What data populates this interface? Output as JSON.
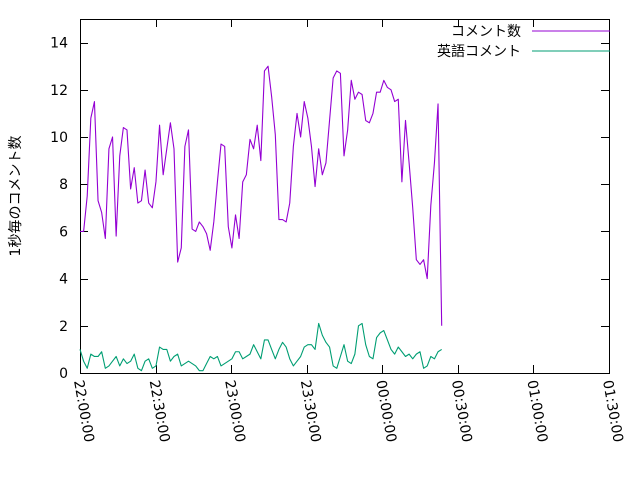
{
  "chart_data": {
    "type": "line",
    "title": "",
    "xlabel": "",
    "ylabel": "1秒毎のコメント数",
    "xlim": [
      "22:00:00",
      "01:30:00"
    ],
    "ylim": [
      0,
      15
    ],
    "x_ticks": [
      "22:00:00",
      "22:30:00",
      "23:00:00",
      "23:30:00",
      "00:00:00",
      "00:30:00",
      "01:00:00",
      "01:30:00"
    ],
    "y_ticks": [
      0,
      2,
      4,
      6,
      8,
      10,
      12,
      14
    ],
    "grid": false,
    "legend": "top-right",
    "series": [
      {
        "name": "コメント数",
        "color": "#9400d3",
        "points": [
          [
            "22:00:00",
            6.0
          ],
          [
            "22:01:26",
            6.0
          ],
          [
            "22:02:52",
            7.5
          ],
          [
            "22:04:18",
            10.8
          ],
          [
            "22:05:44",
            11.5
          ],
          [
            "22:07:10",
            7.3
          ],
          [
            "22:08:36",
            6.8
          ],
          [
            "22:10:03",
            5.7
          ],
          [
            "22:11:29",
            9.5
          ],
          [
            "22:12:55",
            10.0
          ],
          [
            "22:14:21",
            5.8
          ],
          [
            "22:15:47",
            9.2
          ],
          [
            "22:17:13",
            10.4
          ],
          [
            "22:18:39",
            10.3
          ],
          [
            "22:20:06",
            7.8
          ],
          [
            "22:21:32",
            8.7
          ],
          [
            "22:22:58",
            7.2
          ],
          [
            "22:24:24",
            7.3
          ],
          [
            "22:25:50",
            8.6
          ],
          [
            "22:27:16",
            7.2
          ],
          [
            "22:28:43",
            7.0
          ],
          [
            "22:30:09",
            8.1
          ],
          [
            "22:31:35",
            10.5
          ],
          [
            "22:33:01",
            8.4
          ],
          [
            "22:34:27",
            9.5
          ],
          [
            "22:35:53",
            10.6
          ],
          [
            "22:37:19",
            9.5
          ],
          [
            "22:38:46",
            4.7
          ],
          [
            "22:40:12",
            5.3
          ],
          [
            "22:41:38",
            9.6
          ],
          [
            "22:43:04",
            10.3
          ],
          [
            "22:44:30",
            6.1
          ],
          [
            "22:45:56",
            6.0
          ],
          [
            "22:47:22",
            6.4
          ],
          [
            "22:48:49",
            6.2
          ],
          [
            "22:50:15",
            5.9
          ],
          [
            "22:51:41",
            5.2
          ],
          [
            "22:53:07",
            6.4
          ],
          [
            "22:54:33",
            8.1
          ],
          [
            "22:55:59",
            9.7
          ],
          [
            "22:57:26",
            9.6
          ],
          [
            "22:58:52",
            6.2
          ],
          [
            "23:00:18",
            5.3
          ],
          [
            "23:01:44",
            6.7
          ],
          [
            "23:03:10",
            5.7
          ],
          [
            "23:04:36",
            8.1
          ],
          [
            "23:06:02",
            8.4
          ],
          [
            "23:07:29",
            9.9
          ],
          [
            "23:08:55",
            9.5
          ],
          [
            "23:10:21",
            10.5
          ],
          [
            "23:11:47",
            9.0
          ],
          [
            "23:13:13",
            12.8
          ],
          [
            "23:14:39",
            13.0
          ],
          [
            "23:16:05",
            11.7
          ],
          [
            "23:17:32",
            10.1
          ],
          [
            "23:18:58",
            6.5
          ],
          [
            "23:20:24",
            6.5
          ],
          [
            "23:21:50",
            6.4
          ],
          [
            "23:23:16",
            7.2
          ],
          [
            "23:24:42",
            9.6
          ],
          [
            "23:26:09",
            11.0
          ],
          [
            "23:27:35",
            10.0
          ],
          [
            "23:29:01",
            11.5
          ],
          [
            "23:30:27",
            10.8
          ],
          [
            "23:31:53",
            9.6
          ],
          [
            "23:33:19",
            7.9
          ],
          [
            "23:34:45",
            9.5
          ],
          [
            "23:36:12",
            8.4
          ],
          [
            "23:37:38",
            8.9
          ],
          [
            "23:39:04",
            10.7
          ],
          [
            "23:40:30",
            12.5
          ],
          [
            "23:41:56",
            12.8
          ],
          [
            "23:43:22",
            12.7
          ],
          [
            "23:44:48",
            9.2
          ],
          [
            "23:46:15",
            10.3
          ],
          [
            "23:47:41",
            12.4
          ],
          [
            "23:49:07",
            11.6
          ],
          [
            "23:50:33",
            11.9
          ],
          [
            "23:51:59",
            11.8
          ],
          [
            "23:53:25",
            10.7
          ],
          [
            "23:54:52",
            10.6
          ],
          [
            "23:56:18",
            11.0
          ],
          [
            "23:57:44",
            11.9
          ],
          [
            "23:59:10",
            11.9
          ],
          [
            "00:00:36",
            12.4
          ],
          [
            "00:02:02",
            12.1
          ],
          [
            "00:03:28",
            12.0
          ],
          [
            "00:04:55",
            11.5
          ],
          [
            "00:06:21",
            11.6
          ],
          [
            "00:07:47",
            8.1
          ],
          [
            "00:09:13",
            10.7
          ],
          [
            "00:10:39",
            8.9
          ],
          [
            "00:12:05",
            7.0
          ],
          [
            "00:13:31",
            4.8
          ],
          [
            "00:14:58",
            4.6
          ],
          [
            "00:16:24",
            4.8
          ],
          [
            "00:17:50",
            4.0
          ],
          [
            "00:19:16",
            7.1
          ],
          [
            "00:20:42",
            8.9
          ],
          [
            "00:22:08",
            11.4
          ],
          [
            "00:23:35",
            2.0
          ]
        ]
      },
      {
        "name": "英語コメント",
        "color": "#009e73",
        "points": [
          [
            "22:00:00",
            1.0
          ],
          [
            "22:01:26",
            0.5
          ],
          [
            "22:02:52",
            0.2
          ],
          [
            "22:04:18",
            0.8
          ],
          [
            "22:05:44",
            0.7
          ],
          [
            "22:07:10",
            0.7
          ],
          [
            "22:08:36",
            0.9
          ],
          [
            "22:10:03",
            0.2
          ],
          [
            "22:11:29",
            0.3
          ],
          [
            "22:12:55",
            0.5
          ],
          [
            "22:14:21",
            0.7
          ],
          [
            "22:15:47",
            0.3
          ],
          [
            "22:17:13",
            0.6
          ],
          [
            "22:18:39",
            0.4
          ],
          [
            "22:20:06",
            0.5
          ],
          [
            "22:21:32",
            0.8
          ],
          [
            "22:22:58",
            0.2
          ],
          [
            "22:24:24",
            0.1
          ],
          [
            "22:25:50",
            0.5
          ],
          [
            "22:27:16",
            0.6
          ],
          [
            "22:28:43",
            0.2
          ],
          [
            "22:30:09",
            0.3
          ],
          [
            "22:31:35",
            1.1
          ],
          [
            "22:33:01",
            1.0
          ],
          [
            "22:34:27",
            1.0
          ],
          [
            "22:35:53",
            0.5
          ],
          [
            "22:37:19",
            0.7
          ],
          [
            "22:38:46",
            0.8
          ],
          [
            "22:40:12",
            0.3
          ],
          [
            "22:41:38",
            0.4
          ],
          [
            "22:43:04",
            0.5
          ],
          [
            "22:44:30",
            0.4
          ],
          [
            "22:45:56",
            0.3
          ],
          [
            "22:47:22",
            0.1
          ],
          [
            "22:48:49",
            0.1
          ],
          [
            "22:50:15",
            0.4
          ],
          [
            "22:51:41",
            0.7
          ],
          [
            "22:53:07",
            0.6
          ],
          [
            "22:54:33",
            0.7
          ],
          [
            "22:55:59",
            0.3
          ],
          [
            "22:57:26",
            0.4
          ],
          [
            "22:58:52",
            0.5
          ],
          [
            "23:00:18",
            0.6
          ],
          [
            "23:01:44",
            0.9
          ],
          [
            "23:03:10",
            0.9
          ],
          [
            "23:04:36",
            0.6
          ],
          [
            "23:06:02",
            0.7
          ],
          [
            "23:07:29",
            0.8
          ],
          [
            "23:08:55",
            1.2
          ],
          [
            "23:10:21",
            0.9
          ],
          [
            "23:11:47",
            0.6
          ],
          [
            "23:13:13",
            1.4
          ],
          [
            "23:14:39",
            1.4
          ],
          [
            "23:16:05",
            1.0
          ],
          [
            "23:17:32",
            0.6
          ],
          [
            "23:18:58",
            1.0
          ],
          [
            "23:20:24",
            1.3
          ],
          [
            "23:21:50",
            1.1
          ],
          [
            "23:23:16",
            0.6
          ],
          [
            "23:24:42",
            0.3
          ],
          [
            "23:26:09",
            0.5
          ],
          [
            "23:27:35",
            0.7
          ],
          [
            "23:29:01",
            1.1
          ],
          [
            "23:30:27",
            1.2
          ],
          [
            "23:31:53",
            1.2
          ],
          [
            "23:33:19",
            1.0
          ],
          [
            "23:34:45",
            2.1
          ],
          [
            "23:36:12",
            1.6
          ],
          [
            "23:37:38",
            1.3
          ],
          [
            "23:39:04",
            1.1
          ],
          [
            "23:40:30",
            0.3
          ],
          [
            "23:41:56",
            0.2
          ],
          [
            "23:43:22",
            0.7
          ],
          [
            "23:44:48",
            1.2
          ],
          [
            "23:46:15",
            0.5
          ],
          [
            "23:47:41",
            0.4
          ],
          [
            "23:49:07",
            0.8
          ],
          [
            "23:50:33",
            2.0
          ],
          [
            "23:51:59",
            2.1
          ],
          [
            "23:53:25",
            1.2
          ],
          [
            "23:54:52",
            0.7
          ],
          [
            "23:56:18",
            0.6
          ],
          [
            "23:57:44",
            1.5
          ],
          [
            "23:59:10",
            1.7
          ],
          [
            "00:00:36",
            1.8
          ],
          [
            "00:02:02",
            1.4
          ],
          [
            "00:03:28",
            1.0
          ],
          [
            "00:04:55",
            0.8
          ],
          [
            "00:06:21",
            1.1
          ],
          [
            "00:07:47",
            0.9
          ],
          [
            "00:09:13",
            0.7
          ],
          [
            "00:10:39",
            0.8
          ],
          [
            "00:12:05",
            0.6
          ],
          [
            "00:13:31",
            0.8
          ],
          [
            "00:14:58",
            0.9
          ],
          [
            "00:16:24",
            0.2
          ],
          [
            "00:17:50",
            0.3
          ],
          [
            "00:19:16",
            0.7
          ],
          [
            "00:20:42",
            0.6
          ],
          [
            "00:22:08",
            0.9
          ],
          [
            "00:23:35",
            1.0
          ]
        ]
      }
    ]
  }
}
